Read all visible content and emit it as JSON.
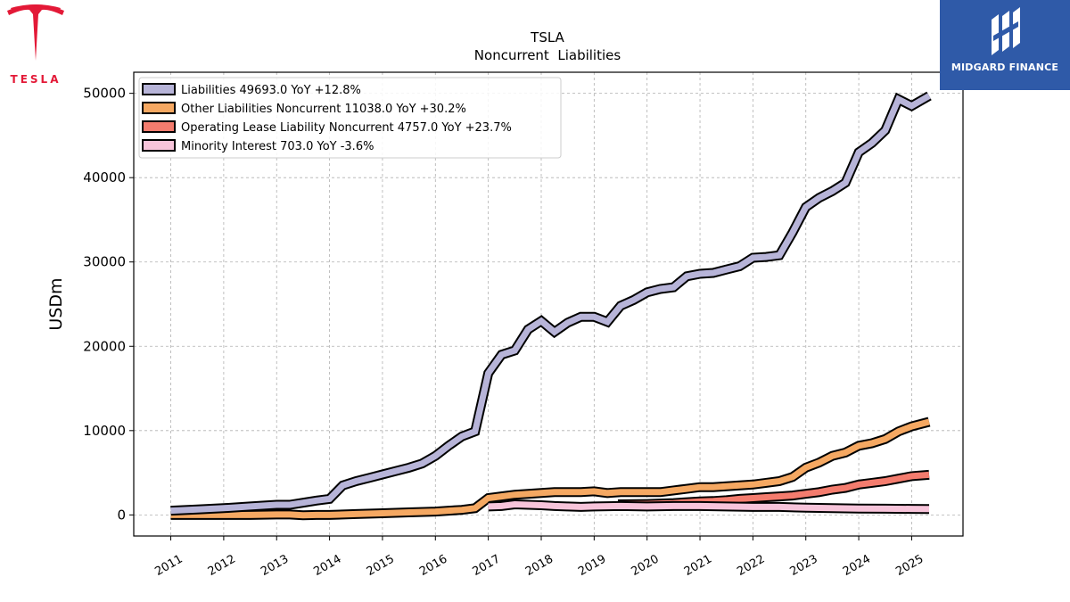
{
  "branding": {
    "left_logo_text": "TESLA",
    "right_logo_text": "MIDGARD FINANCE",
    "tesla_red": "#e31937",
    "midgard_blue": "#2f5aa8"
  },
  "chart_data": {
    "type": "line",
    "title": "TSLA",
    "subtitle": "Noncurrent  Liabilities",
    "ylabel": "USDm",
    "xlabel": "",
    "xlim": [
      2010.3,
      2025.97
    ],
    "ylim": [
      -2500,
      52500
    ],
    "yticks": [
      0,
      10000,
      20000,
      30000,
      40000,
      50000
    ],
    "xticks": [
      2011,
      2012,
      2013,
      2014,
      2015,
      2016,
      2017,
      2018,
      2019,
      2020,
      2021,
      2022,
      2023,
      2024,
      2025
    ],
    "grid": true,
    "legend_position": "top-left",
    "series": [
      {
        "name": "Liabilities",
        "legend": "Liabilities  49693.0 YoY +12.8%",
        "color": "#b7b4d8",
        "points": [
          [
            2011,
            500
          ],
          [
            2011.5,
            650
          ],
          [
            2012,
            800
          ],
          [
            2012.5,
            1000
          ],
          [
            2013,
            1200
          ],
          [
            2013.25,
            1200
          ],
          [
            2013.5,
            1450
          ],
          [
            2013.75,
            1700
          ],
          [
            2014,
            1900
          ],
          [
            2014.25,
            3500
          ],
          [
            2014.5,
            4000
          ],
          [
            2014.75,
            4400
          ],
          [
            2015,
            4800
          ],
          [
            2015.25,
            5200
          ],
          [
            2015.5,
            5600
          ],
          [
            2015.75,
            6100
          ],
          [
            2016,
            7000
          ],
          [
            2016.25,
            8200
          ],
          [
            2016.5,
            9300
          ],
          [
            2016.75,
            9900
          ],
          [
            2017,
            16800
          ],
          [
            2017.25,
            19000
          ],
          [
            2017.5,
            19500
          ],
          [
            2017.75,
            22000
          ],
          [
            2018,
            23000
          ],
          [
            2018.25,
            21700
          ],
          [
            2018.5,
            22800
          ],
          [
            2018.75,
            23500
          ],
          [
            2019,
            23500
          ],
          [
            2019.25,
            22900
          ],
          [
            2019.5,
            24800
          ],
          [
            2019.75,
            25500
          ],
          [
            2020,
            26400
          ],
          [
            2020.25,
            26800
          ],
          [
            2020.5,
            27000
          ],
          [
            2020.75,
            28300
          ],
          [
            2021,
            28600
          ],
          [
            2021.25,
            28700
          ],
          [
            2021.5,
            29100
          ],
          [
            2021.75,
            29500
          ],
          [
            2022,
            30500
          ],
          [
            2022.25,
            30600
          ],
          [
            2022.5,
            30800
          ],
          [
            2022.75,
            33500
          ],
          [
            2023,
            36500
          ],
          [
            2023.25,
            37600
          ],
          [
            2023.5,
            38400
          ],
          [
            2023.75,
            39400
          ],
          [
            2024,
            43000
          ],
          [
            2024.25,
            44100
          ],
          [
            2024.5,
            45600
          ],
          [
            2024.75,
            49300
          ],
          [
            2025,
            48500
          ],
          [
            2025.33,
            49693
          ]
        ]
      },
      {
        "name": "Other Liabilities Noncurrent",
        "legend": "Other Liabilities Noncurrent  11038.0 YoY +30.2%",
        "color": "#f5a862",
        "points": [
          [
            2011,
            0
          ],
          [
            2011.5,
            0
          ],
          [
            2012,
            0
          ],
          [
            2012.5,
            0
          ],
          [
            2013,
            50
          ],
          [
            2013.25,
            50
          ],
          [
            2013.5,
            -50
          ],
          [
            2013.75,
            0
          ],
          [
            2014,
            0
          ],
          [
            2014.5,
            100
          ],
          [
            2015,
            200
          ],
          [
            2015.5,
            300
          ],
          [
            2016,
            400
          ],
          [
            2016.25,
            500
          ],
          [
            2016.5,
            600
          ],
          [
            2016.75,
            800
          ],
          [
            2017,
            2000
          ],
          [
            2017.25,
            2200
          ],
          [
            2017.5,
            2400
          ],
          [
            2017.75,
            2500
          ],
          [
            2018,
            2600
          ],
          [
            2018.25,
            2700
          ],
          [
            2018.5,
            2700
          ],
          [
            2018.75,
            2700
          ],
          [
            2019,
            2800
          ],
          [
            2019.25,
            2600
          ],
          [
            2019.5,
            2700
          ],
          [
            2019.75,
            2700
          ],
          [
            2020,
            2700
          ],
          [
            2020.25,
            2700
          ],
          [
            2020.5,
            2900
          ],
          [
            2020.75,
            3100
          ],
          [
            2021,
            3300
          ],
          [
            2021.25,
            3300
          ],
          [
            2021.5,
            3400
          ],
          [
            2021.75,
            3500
          ],
          [
            2022,
            3600
          ],
          [
            2022.25,
            3800
          ],
          [
            2022.5,
            4000
          ],
          [
            2022.75,
            4500
          ],
          [
            2023,
            5600
          ],
          [
            2023.25,
            6200
          ],
          [
            2023.5,
            7000
          ],
          [
            2023.75,
            7400
          ],
          [
            2024,
            8200
          ],
          [
            2024.25,
            8500
          ],
          [
            2024.5,
            9000
          ],
          [
            2024.75,
            9900
          ],
          [
            2025,
            10500
          ],
          [
            2025.33,
            11038
          ]
        ]
      },
      {
        "name": "Operating Lease Liability Noncurrent",
        "legend": "Operating Lease Liability Noncurrent  4757.0 YoY +23.7%",
        "color": "#f47c6e",
        "points": [
          [
            2019.45,
            1250
          ],
          [
            2020,
            1300
          ],
          [
            2020.5,
            1400
          ],
          [
            2021,
            1600
          ],
          [
            2021.25,
            1650
          ],
          [
            2021.5,
            1750
          ],
          [
            2021.75,
            1900
          ],
          [
            2022,
            2000
          ],
          [
            2022.25,
            2100
          ],
          [
            2022.5,
            2200
          ],
          [
            2022.75,
            2300
          ],
          [
            2023,
            2500
          ],
          [
            2023.25,
            2700
          ],
          [
            2023.5,
            3000
          ],
          [
            2023.75,
            3200
          ],
          [
            2024,
            3600
          ],
          [
            2024.25,
            3800
          ],
          [
            2024.5,
            4000
          ],
          [
            2024.75,
            4300
          ],
          [
            2025,
            4600
          ],
          [
            2025.33,
            4757
          ]
        ]
      },
      {
        "name": "Minority Interest",
        "legend": "Minority Interest  703.0 YoY -3.6%",
        "color": "#f7c4da",
        "points": [
          [
            2017,
            1000
          ],
          [
            2017.25,
            1050
          ],
          [
            2017.5,
            1250
          ],
          [
            2017.75,
            1200
          ],
          [
            2018,
            1150
          ],
          [
            2018.25,
            1050
          ],
          [
            2018.5,
            1000
          ],
          [
            2018.75,
            950
          ],
          [
            2019,
            1000
          ],
          [
            2019.5,
            1050
          ],
          [
            2020,
            1000
          ],
          [
            2020.5,
            1050
          ],
          [
            2021,
            1050
          ],
          [
            2021.5,
            1000
          ],
          [
            2022,
            950
          ],
          [
            2022.5,
            950
          ],
          [
            2023,
            850
          ],
          [
            2023.5,
            800
          ],
          [
            2024,
            760
          ],
          [
            2024.5,
            740
          ],
          [
            2025,
            720
          ],
          [
            2025.33,
            703
          ]
        ]
      }
    ]
  }
}
